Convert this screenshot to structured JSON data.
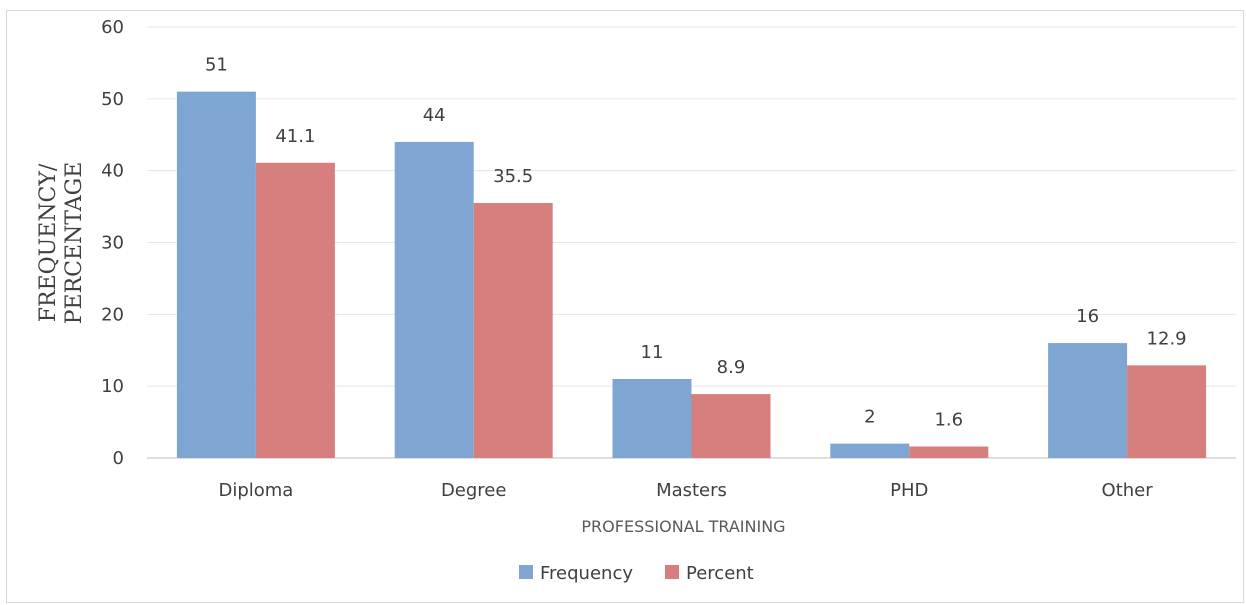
{
  "chart_data": {
    "type": "bar",
    "categories": [
      "Diploma",
      "Degree",
      "Masters",
      "PHD",
      "Other"
    ],
    "series": [
      {
        "name": "Frequency",
        "values": [
          51,
          44,
          11,
          2,
          16
        ],
        "color": "#7fa6d3"
      },
      {
        "name": "Percent",
        "values": [
          41.1,
          35.5,
          8.9,
          1.6,
          12.9
        ],
        "color": "#d77f7f"
      }
    ],
    "title": "",
    "xlabel": "PROFESSIONAL TRAINING",
    "ylabel_lines": [
      "FREQUENCY/",
      "PERCENTAGE"
    ],
    "ylim": [
      0,
      60
    ],
    "yticks": [
      0,
      10,
      20,
      30,
      40,
      50,
      60
    ],
    "grid": true,
    "legend_position": "bottom",
    "data_labels": true
  }
}
